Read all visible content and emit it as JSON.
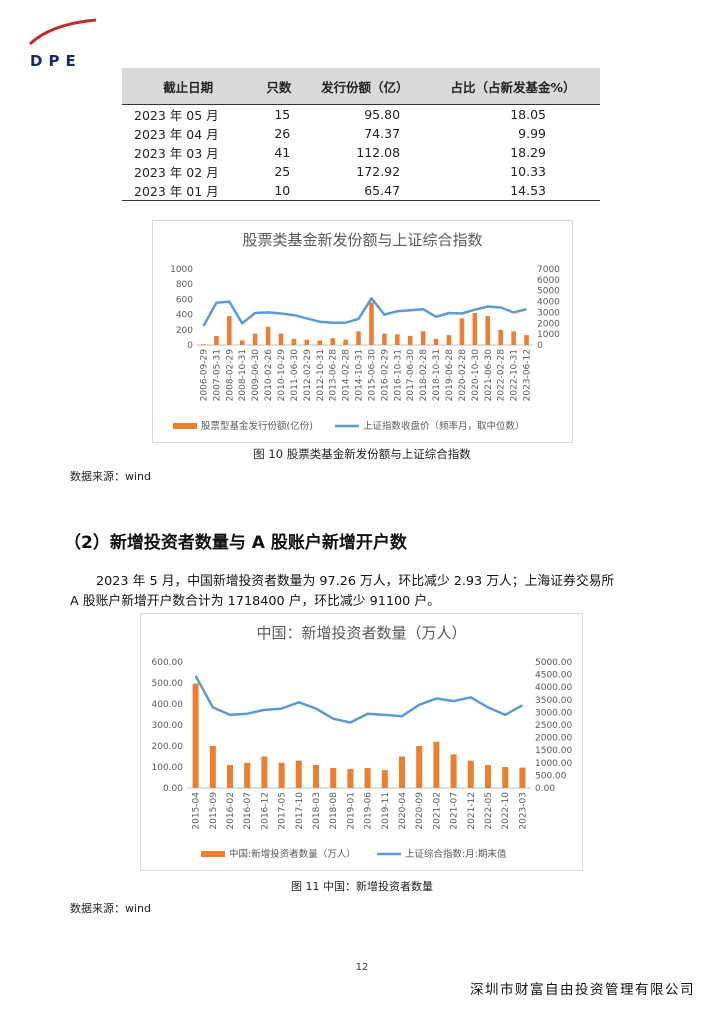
{
  "header": {
    "logo_text": "DPE"
  },
  "table": {
    "headers": [
      "截止日期",
      "只数",
      "发行份额（亿）",
      "占比（占新发基金%）"
    ],
    "rows": [
      [
        "2023 年 05 月",
        "15",
        "95.80",
        "18.05"
      ],
      [
        "2023 年 04 月",
        "26",
        "74.37",
        "9.99"
      ],
      [
        "2023 年 03 月",
        "41",
        "112.08",
        "18.29"
      ],
      [
        "2023 年 02 月",
        "25",
        "172.92",
        "10.33"
      ],
      [
        "2023 年 01 月",
        "10",
        "65.47",
        "14.53"
      ]
    ]
  },
  "figure1": {
    "caption": "图 10 股票类基金新发份额与上证综合指数",
    "source": "数据来源：wind"
  },
  "figure2": {
    "caption": "图 11 中国：新增投资者数量",
    "source": "数据来源：wind"
  },
  "section": {
    "heading": "（2）新增投资者数量与 A 股账户新增开户数",
    "para_line1": "2023 年 5 月，中国新增投资者数量为 97.26 万人，环比减少 2.93 万人；上海证券交易所",
    "para_line2": "A 股账户新增开户数合计为 1718400 户，环比减少 91100 户。"
  },
  "footer": {
    "page": "12",
    "company": "深圳市财富自由投资管理有限公司"
  },
  "chart_data": [
    {
      "type": "bar+line",
      "title": "股票类基金新发份额与上证综合指数",
      "categories": [
        "2006-09-29",
        "2007-05-31",
        "2008-02-29",
        "2008-10-31",
        "2009-06-30",
        "2010-02-26",
        "2010-10-29",
        "2011-06-30",
        "2012-02-29",
        "2012-10-31",
        "2013-06-28",
        "2014-02-28",
        "2014-10-31",
        "2015-06-30",
        "2016-02-29",
        "2016-10-31",
        "2017-06-30",
        "2018-02-28",
        "2018-10-31",
        "2019-06-28",
        "2020-02-28",
        "2020-10-30",
        "2021-06-30",
        "2022-02-28",
        "2022-10-31",
        "2023-06-12"
      ],
      "left_ylim": [
        0,
        1000
      ],
      "left_ticks": [
        "0",
        "200",
        "400",
        "600",
        "800",
        "1000"
      ],
      "right_ylim": [
        0,
        7000
      ],
      "right_ticks": [
        "0",
        "1000",
        "2000",
        "3000",
        "4000",
        "5000",
        "6000",
        "7000"
      ],
      "series": [
        {
          "name": "股票型基金发行份额(亿份)",
          "type": "bar",
          "color": "#ed7d31",
          "values": [
            10,
            120,
            380,
            60,
            150,
            240,
            150,
            80,
            70,
            60,
            90,
            70,
            180,
            560,
            150,
            140,
            120,
            180,
            80,
            130,
            350,
            420,
            380,
            200,
            180,
            130
          ]
        },
        {
          "name": "上证指数收盘价（频率月，取中位数）",
          "type": "line",
          "color": "#5b9bd5",
          "axis": "right",
          "values": [
            1750,
            3900,
            4000,
            2000,
            2950,
            3000,
            2900,
            2750,
            2450,
            2150,
            2050,
            2050,
            2400,
            4300,
            2800,
            3100,
            3200,
            3300,
            2600,
            2950,
            2900,
            3250,
            3550,
            3450,
            3000,
            3300
          ]
        }
      ]
    },
    {
      "type": "bar+line",
      "title": "中国：新增投资者数量（万人）",
      "categories": [
        "2015-04",
        "2015-09",
        "2016-02",
        "2016-07",
        "2016-12",
        "2017-05",
        "2017-10",
        "2018-03",
        "2018-08",
        "2019-01",
        "2019-06",
        "2019-11",
        "2020-04",
        "2020-09",
        "2021-02",
        "2021-07",
        "2021-12",
        "2022-05",
        "2022-10",
        "2023-03"
      ],
      "left_ylim": [
        0,
        600
      ],
      "left_ticks": [
        "0.00",
        "100.00",
        "200.00",
        "300.00",
        "400.00",
        "500.00",
        "600.00"
      ],
      "right_ylim": [
        0,
        5000
      ],
      "right_ticks": [
        "0.00",
        "500.00",
        "1000.00",
        "1500.00",
        "2000.00",
        "2500.00",
        "3000.00",
        "3500.00",
        "4000.00",
        "4500.00",
        "5000.00"
      ],
      "series": [
        {
          "name": "中国:新增投资者数量（万人）",
          "type": "bar",
          "color": "#ed7d31",
          "values": [
            497,
            200,
            110,
            120,
            150,
            120,
            130,
            110,
            95,
            90,
            95,
            85,
            150,
            200,
            220,
            160,
            130,
            110,
            100,
            97
          ]
        },
        {
          "name": "上证综合指数:月:期末值",
          "type": "line",
          "color": "#5b9bd5",
          "axis": "right",
          "values": [
            4450,
            3200,
            2900,
            2950,
            3100,
            3150,
            3400,
            3150,
            2750,
            2600,
            2950,
            2900,
            2850,
            3300,
            3550,
            3450,
            3600,
            3200,
            2900,
            3280
          ]
        }
      ]
    }
  ]
}
